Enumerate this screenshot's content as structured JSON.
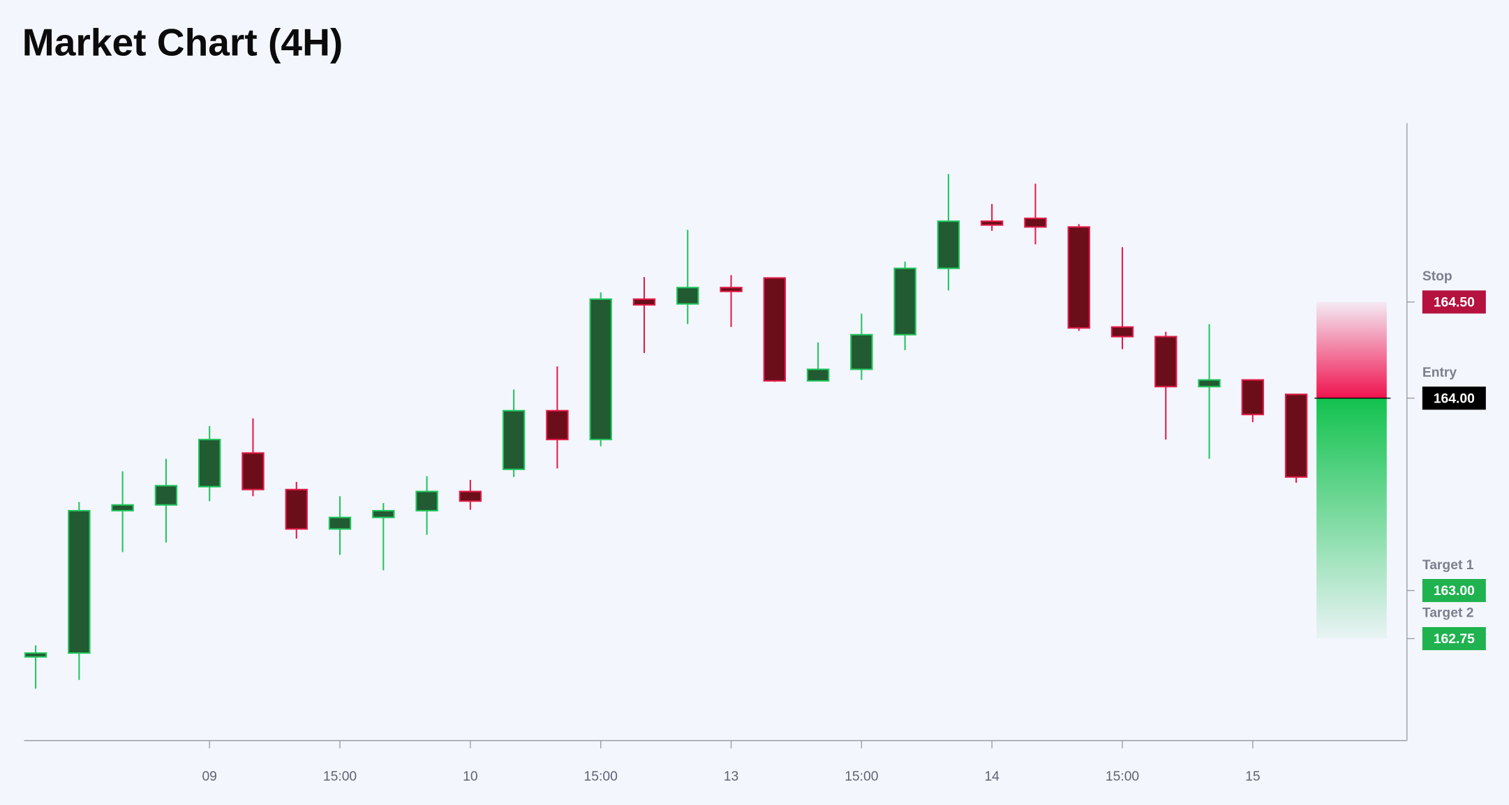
{
  "chart_data": {
    "type": "candlestick",
    "title": "Market Chart (4H)",
    "categories": [
      null,
      null,
      null,
      null,
      "09",
      null,
      null,
      "15:00",
      null,
      null,
      "10",
      null,
      null,
      "15:00",
      null,
      null,
      "13",
      null,
      null,
      "15:00",
      null,
      null,
      "14",
      null,
      null,
      "15:00",
      null,
      null,
      "15",
      null
    ],
    "open": [
      162.655,
      162.675,
      163.415,
      163.445,
      163.54,
      163.715,
      163.525,
      163.32,
      163.38,
      163.415,
      163.515,
      163.63,
      163.935,
      163.785,
      164.515,
      164.49,
      164.575,
      164.625,
      164.09,
      164.15,
      164.33,
      164.675,
      164.92,
      164.935,
      164.89,
      164.37,
      164.32,
      164.06,
      164.095,
      164.02
    ],
    "high": [
      162.715,
      163.46,
      163.62,
      163.685,
      163.855,
      163.895,
      163.565,
      163.49,
      163.455,
      163.595,
      163.575,
      164.045,
      164.165,
      164.55,
      164.63,
      164.875,
      164.64,
      164.625,
      164.29,
      164.44,
      164.71,
      165.165,
      165.01,
      165.115,
      164.905,
      164.785,
      164.345,
      164.385,
      164.095,
      164.02
    ],
    "low": [
      162.49,
      162.535,
      163.2,
      163.25,
      163.465,
      163.49,
      163.27,
      163.185,
      163.105,
      163.29,
      163.42,
      163.59,
      163.635,
      163.75,
      164.235,
      164.385,
      164.37,
      164.085,
      164.09,
      164.095,
      164.25,
      164.56,
      164.87,
      164.8,
      164.35,
      164.255,
      163.785,
      163.685,
      163.875,
      163.56
    ],
    "close": [
      162.675,
      163.415,
      163.445,
      163.545,
      163.785,
      163.525,
      163.32,
      163.38,
      163.415,
      163.515,
      163.465,
      163.935,
      163.785,
      164.515,
      164.485,
      164.575,
      164.555,
      164.09,
      164.15,
      164.33,
      164.675,
      164.92,
      164.9,
      164.89,
      164.365,
      164.32,
      164.06,
      164.095,
      163.915,
      163.59
    ],
    "up_color": "#22c55e",
    "down_color": "#e11d48",
    "ylim": [
      162.22,
      165.43
    ],
    "levels": [
      {
        "name": "Stop",
        "price": {
          "value": 164.5,
          "label": "164.50"
        },
        "color": "#b5123f"
      },
      {
        "name": "Entry",
        "price": {
          "value": 164,
          "label": "164.00"
        },
        "color": "#000000"
      },
      {
        "name": "Target 1",
        "price": {
          "value": 163,
          "label": "163.00"
        },
        "color": "#1fb24f"
      },
      {
        "name": "Target 2",
        "price": {
          "value": 162.75,
          "label": "162.75"
        },
        "color": "#1fb24f"
      }
    ]
  }
}
